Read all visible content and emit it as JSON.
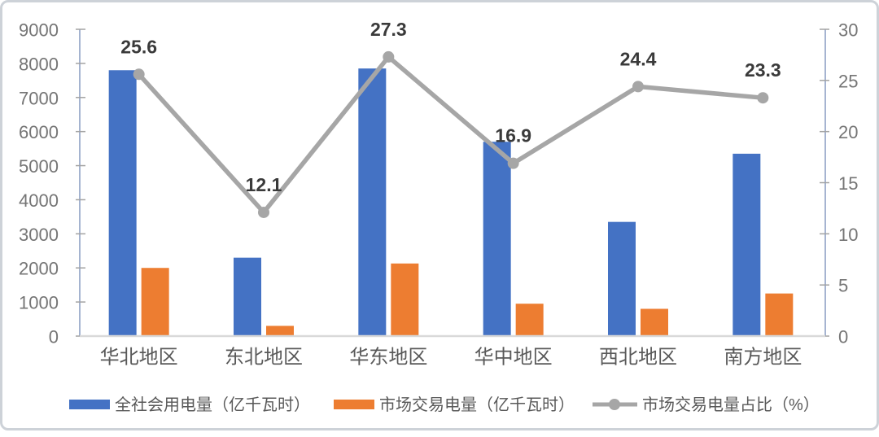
{
  "chart_data": {
    "type": "bar",
    "categories": [
      "华北地区",
      "东北地区",
      "华东地区",
      "华中地区",
      "西北地区",
      "南方地区"
    ],
    "series": [
      {
        "name": "全社会用电量（亿千瓦时）",
        "type": "bar",
        "axis": "left",
        "color": "#4472C4",
        "values": [
          7800,
          2300,
          7850,
          5700,
          3350,
          5350
        ]
      },
      {
        "name": "市场交易电量（亿千瓦时）",
        "type": "bar",
        "axis": "left",
        "color": "#ED7D31",
        "values": [
          2000,
          300,
          2130,
          950,
          800,
          1250
        ]
      },
      {
        "name": "市场交易电量占比（%）",
        "type": "line",
        "axis": "right",
        "color": "#A6A6A6",
        "values": [
          25.6,
          12.1,
          27.3,
          16.9,
          24.4,
          23.3
        ],
        "point_labels": [
          "25.6",
          "12.1",
          "27.3",
          "16.9",
          "24.4",
          "23.3"
        ]
      }
    ],
    "left_axis": {
      "min": 0,
      "max": 9000,
      "step": 1000,
      "tick_labels": [
        "0",
        "1000",
        "2000",
        "3000",
        "4000",
        "5000",
        "6000",
        "7000",
        "8000",
        "9000"
      ]
    },
    "right_axis": {
      "min": 0,
      "max": 30,
      "step": 5,
      "tick_labels": [
        "0",
        "5",
        "10",
        "15",
        "20",
        "25",
        "30"
      ]
    },
    "legend": {
      "position": "bottom",
      "entries": [
        "全社会用电量（亿千瓦时）",
        "市场交易电量（亿千瓦时）",
        "市场交易电量占比（%）"
      ]
    },
    "grid": false,
    "title": ""
  },
  "colors": {
    "bar_blue": "#4472C4",
    "bar_orange": "#ED7D31",
    "line_gray": "#A6A6A6",
    "axis_line": "#7F94BD",
    "baseline": "#D9D9D9",
    "tick": "#A3A3A3",
    "tick_label": "#757575",
    "category_label": "#595959",
    "data_label": "#3A3A3A",
    "legend_text": "#595959",
    "border": "#CDD2D8"
  }
}
